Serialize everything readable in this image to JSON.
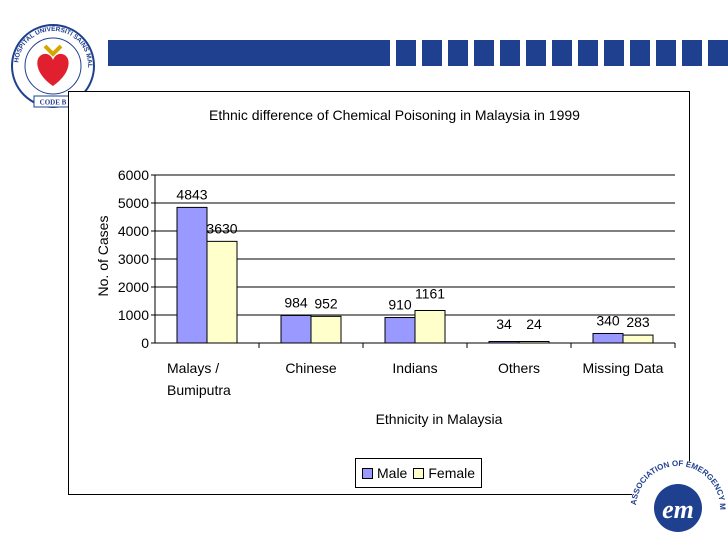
{
  "colors": {
    "male": "#9999ff",
    "female": "#ffffcc",
    "banner": "#1f3f8f",
    "logo_red": "#e0202e"
  },
  "logos": {
    "top_left_text": "HOSPITAL UNIVERSITI SAINS MALAYSIA",
    "top_left_badge": "CODE B",
    "bottom_right_text": "ASSOCIATION OF EMERGENCY MEDICINE",
    "bottom_right_mark": "em"
  },
  "chart_data": {
    "type": "bar",
    "title": "Ethnic difference of Chemical Poisoning in Malaysia in 1999",
    "xlabel": "Ethnicity in Malaysia",
    "ylabel": "No. of Cases",
    "categories": [
      "Malays / Bumiputra",
      "Chinese",
      "Indians",
      "Others",
      "Missing Data"
    ],
    "category_lines": [
      [
        "Malays /",
        "Bumiputra"
      ],
      [
        "Chinese"
      ],
      [
        "Indians"
      ],
      [
        "Others"
      ],
      [
        "Missing Data"
      ]
    ],
    "series": [
      {
        "name": "Male",
        "values": [
          4843,
          984,
          910,
          34,
          340
        ]
      },
      {
        "name": "Female",
        "values": [
          3630,
          952,
          1161,
          24,
          283
        ]
      }
    ],
    "ylim": [
      0,
      6000
    ],
    "yticks": [
      0,
      1000,
      2000,
      3000,
      4000,
      5000,
      6000
    ],
    "grid": true,
    "legend": "bottom"
  }
}
